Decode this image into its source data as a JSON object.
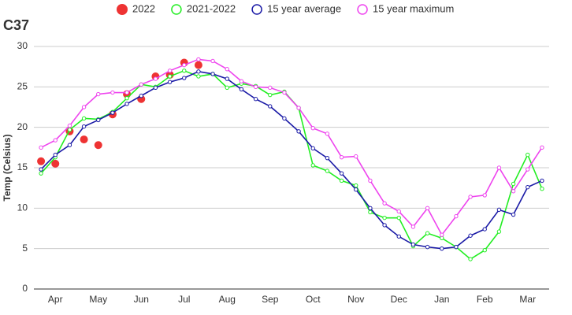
{
  "chart_data": {
    "type": "line",
    "title": "C37",
    "y_label": "Temp (Celsius)",
    "categories": [
      null,
      "Apr",
      null,
      null,
      "May",
      null,
      null,
      "Jun",
      null,
      null,
      "Jul",
      null,
      null,
      "Aug",
      null,
      null,
      "Sep",
      null,
      null,
      "Oct",
      null,
      null,
      "Nov",
      null,
      null,
      "Dec",
      null,
      null,
      "Jan",
      null,
      null,
      "Feb",
      null,
      null,
      "Mar",
      null
    ],
    "ylim": [
      0,
      30
    ],
    "yticks": [
      0,
      5,
      10,
      15,
      20,
      25,
      30
    ],
    "grid": true,
    "series": [
      {
        "name": "2022",
        "color": "#ee3333",
        "mode": "markers",
        "values": [
          15.8,
          15.5,
          19.5,
          18.5,
          17.8,
          21.6,
          24.1,
          23.5,
          26.3,
          26.5,
          28.0,
          27.7,
          null,
          null,
          null,
          null,
          null,
          null,
          null,
          null,
          null,
          null,
          null,
          null,
          null,
          null,
          null,
          null,
          null,
          null,
          null,
          null,
          null,
          null,
          null,
          null
        ]
      },
      {
        "name": "2021-2022",
        "color": "#22ee22",
        "mode": "lines",
        "values": [
          14.3,
          16.3,
          19.7,
          21.1,
          21.0,
          21.9,
          23.6,
          25.3,
          25.0,
          26.3,
          27.0,
          26.3,
          26.6,
          24.9,
          25.4,
          25.1,
          24.0,
          24.4,
          22.4,
          15.3,
          14.6,
          13.4,
          12.8,
          9.5,
          8.8,
          8.8,
          5.3,
          6.9,
          6.3,
          5.2,
          3.7,
          4.8,
          7.1,
          13.0,
          16.6,
          12.4
        ]
      },
      {
        "name": "15 year average",
        "color": "#1a1aa6",
        "mode": "lines",
        "values": [
          14.8,
          16.6,
          17.8,
          20.1,
          20.9,
          21.8,
          22.9,
          23.9,
          24.9,
          25.6,
          26.1,
          26.9,
          26.6,
          26.0,
          24.7,
          23.5,
          22.6,
          21.1,
          19.5,
          17.4,
          16.2,
          14.3,
          12.3,
          10.0,
          7.9,
          6.5,
          5.5,
          5.2,
          5.0,
          5.2,
          6.6,
          7.4,
          9.8,
          9.2,
          12.6,
          13.4
        ]
      },
      {
        "name": "15 year maximum",
        "color": "#ee44ee",
        "mode": "lines",
        "values": [
          17.5,
          18.4,
          20.2,
          22.5,
          24.1,
          24.3,
          24.3,
          25.3,
          26.0,
          27.0,
          27.7,
          28.4,
          28.2,
          27.2,
          25.7,
          25.0,
          24.9,
          24.3,
          22.4,
          19.9,
          19.2,
          16.3,
          16.4,
          13.4,
          10.6,
          9.6,
          7.7,
          10.0,
          6.7,
          9.0,
          11.4,
          11.6,
          15.0,
          12.1,
          14.8,
          17.5
        ]
      }
    ]
  }
}
